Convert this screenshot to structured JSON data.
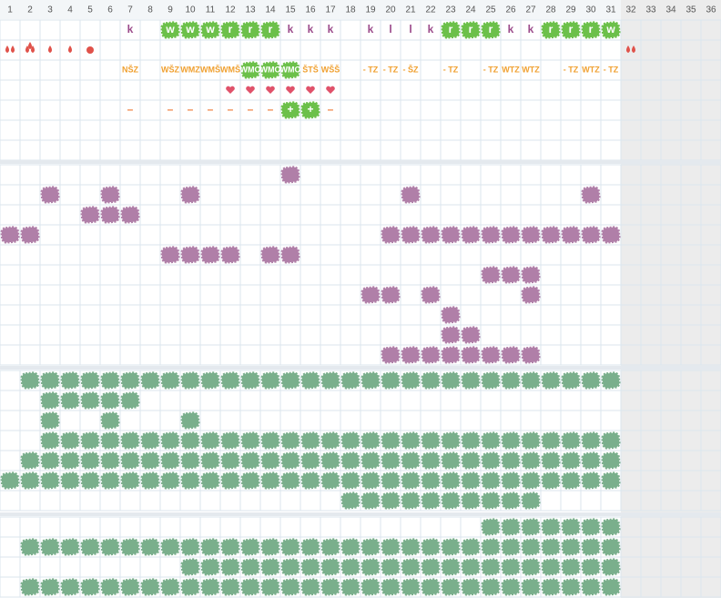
{
  "header": {
    "columns": [
      1,
      2,
      3,
      4,
      5,
      6,
      7,
      8,
      9,
      10,
      11,
      12,
      13,
      14,
      15,
      16,
      17,
      18,
      19,
      20,
      21,
      22,
      23,
      24,
      25,
      26,
      27,
      28,
      29,
      30,
      31,
      32,
      33,
      34,
      35,
      36
    ]
  },
  "tracker": {
    "highlight_color": "#6cc04a",
    "rows": [
      {
        "color": "#9b4a8a",
        "cells": [
          null,
          null,
          null,
          null,
          null,
          null,
          "k",
          null,
          "w",
          "w",
          "w",
          "r",
          "r",
          "r",
          "k",
          "k",
          "k",
          null,
          "k",
          "l",
          "l",
          "k",
          "r",
          "r",
          "r",
          "k",
          "k",
          "r",
          "r",
          "r",
          "w"
        ],
        "highlight": [
          9,
          10,
          11,
          12,
          13,
          14,
          23,
          24,
          25,
          28,
          29,
          30,
          31
        ]
      },
      {
        "cells": [],
        "highlight": []
      },
      {
        "color": "#f0a030",
        "cells": [
          null,
          null,
          null,
          null,
          null,
          null,
          "NŠZ",
          null,
          "WŠZ",
          "WMZ",
          "WMŠ",
          "WMŠ",
          "WMO",
          "WMO",
          "WMO",
          "ŠTŠ",
          "WŠŠ",
          null,
          "- TZ",
          "- TZ",
          "- ŠZ",
          null,
          "- TZ",
          null,
          "- TZ",
          "WTZ",
          "WTZ",
          null,
          "- TZ",
          "WTZ",
          "- TZ"
        ],
        "highlight": [
          13,
          14,
          15
        ]
      },
      {
        "cells": [],
        "highlight": []
      },
      {
        "color": "#f08040",
        "cells": [
          null,
          null,
          null,
          null,
          null,
          null,
          "–",
          null,
          "–",
          "–",
          "–",
          "–",
          "–",
          "–",
          "+",
          "+",
          "–"
        ],
        "highlight": [
          15,
          16
        ]
      },
      {
        "cells": [],
        "highlight": []
      },
      {
        "cells": [],
        "highlight": []
      }
    ]
  },
  "sections": [
    {
      "color": "#b07fa8",
      "rows": [
        [
          15
        ],
        [
          3,
          6,
          10,
          21,
          30
        ],
        [
          5,
          6,
          7
        ],
        [
          1,
          2,
          20,
          21,
          22,
          23,
          24,
          25,
          26,
          27,
          28,
          29,
          30,
          31
        ],
        [
          9,
          10,
          11,
          12,
          14,
          15
        ],
        [
          25,
          26,
          27
        ],
        [
          19,
          20,
          22,
          27
        ],
        [
          23
        ],
        [
          23,
          24
        ],
        [
          20,
          21,
          22,
          23,
          24,
          25,
          26,
          27
        ]
      ]
    },
    {
      "color": "#7aaf8c",
      "rows": [
        [
          2,
          3,
          4,
          5,
          6,
          7,
          8,
          9,
          10,
          11,
          12,
          13,
          14,
          15,
          16,
          17,
          18,
          19,
          20,
          21,
          22,
          23,
          24,
          25,
          26,
          27,
          28,
          29,
          30,
          31
        ],
        [
          3,
          4,
          5,
          6,
          7
        ],
        [
          3,
          6,
          10
        ],
        [
          3,
          4,
          5,
          6,
          7,
          8,
          9,
          10,
          11,
          12,
          13,
          14,
          15,
          16,
          17,
          18,
          19,
          20,
          21,
          22,
          23,
          24,
          25,
          26,
          27,
          28,
          29,
          30,
          31
        ],
        [
          2,
          3,
          4,
          5,
          6,
          7,
          8,
          9,
          10,
          11,
          12,
          13,
          14,
          15,
          16,
          17,
          18,
          19,
          20,
          21,
          22,
          23,
          24,
          25,
          26,
          27,
          28,
          29,
          30,
          31
        ],
        [
          1,
          2,
          3,
          4,
          5,
          6,
          7,
          8,
          9,
          10,
          11,
          12,
          13,
          14,
          15,
          16,
          17,
          18,
          19,
          20,
          21,
          22,
          23,
          24,
          25,
          26,
          27,
          28,
          29,
          30,
          31
        ],
        [
          18,
          19,
          20,
          21,
          22,
          23,
          24,
          25,
          26,
          27
        ]
      ]
    },
    {
      "color": "#7aaf8c",
      "rows": [
        [
          25,
          26,
          27,
          28,
          29,
          30,
          31
        ],
        [
          2,
          3,
          4,
          5,
          6,
          7,
          8,
          9,
          10,
          11,
          12,
          13,
          14,
          15,
          16,
          17,
          18,
          19,
          20,
          21,
          22,
          23,
          24,
          25,
          26,
          27,
          28,
          29,
          30,
          31
        ],
        [
          10,
          11,
          12,
          13,
          14,
          15,
          16,
          17,
          18,
          19,
          20,
          21,
          22,
          23,
          24,
          25,
          26,
          27,
          28,
          29,
          30,
          31
        ],
        [
          2,
          3,
          4,
          5,
          6,
          7,
          8,
          9,
          10,
          11,
          12,
          13,
          14,
          15,
          16,
          17,
          18,
          19,
          20,
          21,
          22,
          23,
          24,
          25,
          26,
          27,
          28,
          29,
          30,
          31
        ]
      ]
    }
  ]
}
